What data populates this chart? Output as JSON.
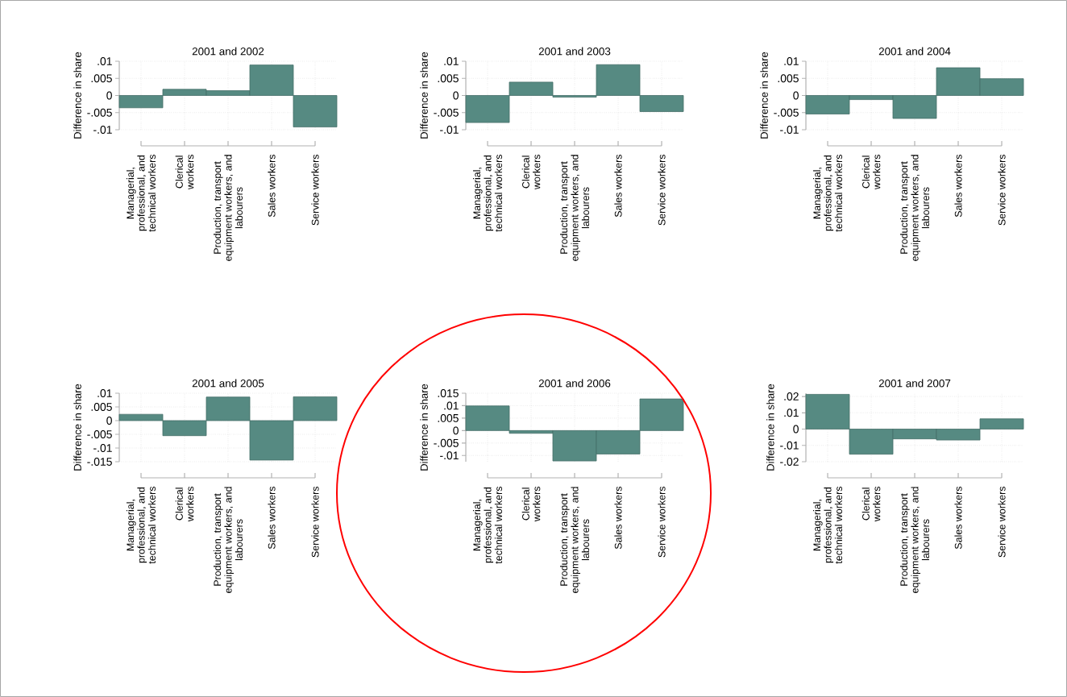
{
  "chart_data": [
    {
      "type": "bar",
      "title": "2001 and 2002",
      "ylabel": "Difference in share",
      "categories": [
        "Managerial, professional, and technical workers",
        "Clerical workers",
        "Production, transport equipment workers, and labourers",
        "Sales workers",
        "Service workers"
      ],
      "values": [
        -0.0036,
        0.0018,
        0.0014,
        0.0089,
        -0.0092
      ],
      "color": "#568a82",
      "ylim": [
        -0.01,
        0.01
      ],
      "yticks": [
        {
          "value": -0.01,
          "label": "-.01"
        },
        {
          "value": -0.005,
          "label": "-.005"
        },
        0,
        {
          "value": 0.005,
          "label": ".005"
        },
        {
          "value": 0.01,
          "label": ".01"
        }
      ],
      "grid": true
    },
    {
      "type": "bar",
      "title": "2001 and 2003",
      "ylabel": "Difference in share",
      "categories": [
        "Managerial, professional, and technical workers",
        "Clerical workers",
        "Production, transport equipment workers, and labourers",
        "Sales workers",
        "Service workers"
      ],
      "values": [
        -0.0079,
        0.0039,
        -0.0005,
        0.009,
        -0.0047
      ],
      "color": "#568a82",
      "ylim": [
        -0.01,
        0.01
      ],
      "yticks": [
        {
          "value": -0.01,
          "label": "-.01"
        },
        {
          "value": -0.005,
          "label": "-.005"
        },
        0,
        {
          "value": 0.005,
          "label": ".005"
        },
        {
          "value": 0.01,
          "label": ".01"
        }
      ],
      "grid": true
    },
    {
      "type": "bar",
      "title": "2001 and 2004",
      "ylabel": "Difference in share",
      "categories": [
        "Managerial, professional, and technical workers",
        "Clerical workers",
        "Production, transport equipment workers, and labourers",
        "Sales workers",
        "Service workers"
      ],
      "values": [
        -0.0054,
        -0.0012,
        -0.0067,
        0.0081,
        0.0049
      ],
      "color": "#568a82",
      "ylim": [
        -0.01,
        0.01
      ],
      "yticks": [
        {
          "value": -0.01,
          "label": "-.01"
        },
        {
          "value": -0.005,
          "label": "-.005"
        },
        0,
        {
          "value": 0.005,
          "label": ".005"
        },
        {
          "value": 0.01,
          "label": ".01"
        }
      ],
      "grid": true
    },
    {
      "type": "bar",
      "title": "2001 and 2005",
      "ylabel": "Difference in share",
      "categories": [
        "Managerial, professional, and technical workers",
        "Clerical workers",
        "Production, transport equipment workers, and labourers",
        "Sales workers",
        "Service workers"
      ],
      "values": [
        0.0023,
        -0.0055,
        0.0086,
        -0.0144,
        0.0087
      ],
      "color": "#568a82",
      "ylim": [
        -0.015,
        0.01
      ],
      "yticks": [
        {
          "value": -0.015,
          "label": "-.015"
        },
        {
          "value": -0.01,
          "label": "-.01"
        },
        {
          "value": -0.005,
          "label": "-.005"
        },
        0,
        {
          "value": 0.005,
          "label": ".005"
        },
        {
          "value": 0.01,
          "label": ".01"
        }
      ],
      "grid": true
    },
    {
      "type": "bar",
      "title": "2001 and 2006",
      "ylabel": "Difference in share",
      "categories": [
        "Managerial, professional, and technical workers",
        "Clerical workers",
        "Production, transport equipment workers, and labourers",
        "Sales workers",
        "Service workers"
      ],
      "values": [
        0.0099,
        -0.0011,
        -0.0122,
        -0.0094,
        0.0127
      ],
      "color": "#568a82",
      "ylim": [
        -0.0125,
        0.015
      ],
      "yticks": [
        {
          "value": -0.01,
          "label": "-.01"
        },
        {
          "value": -0.005,
          "label": "-.005"
        },
        0,
        {
          "value": 0.005,
          "label": ".005"
        },
        {
          "value": 0.01,
          "label": ".01"
        },
        {
          "value": 0.015,
          "label": ".015"
        }
      ],
      "grid": true
    },
    {
      "type": "bar",
      "title": "2001 and 2007",
      "ylabel": "Difference in share",
      "categories": [
        "Managerial, professional, and technical workers",
        "Clerical workers",
        "Production, transport equipment workers, and labourers",
        "Sales workers",
        "Service workers"
      ],
      "values": [
        0.0213,
        -0.0154,
        -0.006,
        -0.0067,
        0.0063
      ],
      "color": "#568a82",
      "ylim": [
        -0.02,
        0.022
      ],
      "yticks": [
        {
          "value": -0.02,
          "label": "-.02"
        },
        {
          "value": -0.01,
          "label": "-.01"
        },
        0,
        {
          "value": 0.01,
          "label": ".01"
        },
        {
          "value": 0.02,
          "label": ".02"
        }
      ],
      "grid": true
    }
  ]
}
